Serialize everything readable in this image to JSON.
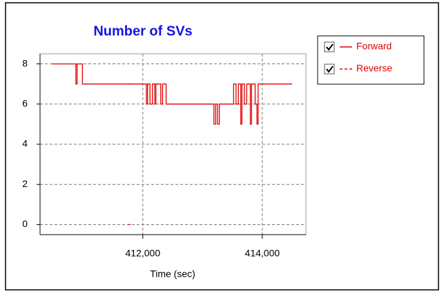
{
  "chart_data": {
    "type": "line",
    "title": "Number of SVs",
    "xlabel": "Time (sec)",
    "xlim": [
      410280,
      414730
    ],
    "ylim": [
      -0.5,
      8.5
    ],
    "xticks": [
      {
        "value": 412000,
        "label": "412,000"
      },
      {
        "value": 414000,
        "label": "414,000"
      }
    ],
    "yticks": [
      0,
      2,
      4,
      6,
      8
    ],
    "grid": true,
    "series": [
      {
        "name": "Forward",
        "color": "#e00000",
        "dash": false,
        "x": [
          410480,
          410880,
          410880,
          410900,
          410900,
          410990,
          410990,
          412060,
          412060,
          412080,
          412080,
          412120,
          412120,
          412160,
          412160,
          412200,
          412200,
          412220,
          412220,
          412300,
          412300,
          412330,
          412330,
          412390,
          412390,
          413190,
          413190,
          413220,
          413220,
          413250,
          413250,
          413280,
          413280,
          413520,
          413520,
          413560,
          413560,
          413600,
          413600,
          413640,
          413640,
          413660,
          413660,
          413700,
          413700,
          413740,
          413740,
          413800,
          413800,
          413820,
          413820,
          413880,
          413880,
          413910,
          413910,
          413930,
          413930,
          414500
        ],
        "values": [
          8,
          8,
          7,
          7,
          8,
          8,
          7,
          7,
          6,
          6,
          7,
          7,
          6,
          6,
          7,
          7,
          6,
          6,
          7,
          7,
          6,
          6,
          7,
          7,
          6,
          6,
          5,
          5,
          6,
          6,
          5,
          5,
          6,
          6,
          7,
          7,
          6,
          6,
          7,
          7,
          5,
          5,
          7,
          7,
          6,
          6,
          7,
          7,
          5,
          5,
          7,
          7,
          6,
          6,
          5,
          5,
          7,
          7
        ]
      },
      {
        "name": "Reverse",
        "color": "#e00000",
        "dash": true,
        "x": [
          411750,
          411810,
          411830,
          411750,
          411810
        ],
        "values": [
          7,
          7,
          null,
          0,
          0
        ]
      }
    ]
  }
}
